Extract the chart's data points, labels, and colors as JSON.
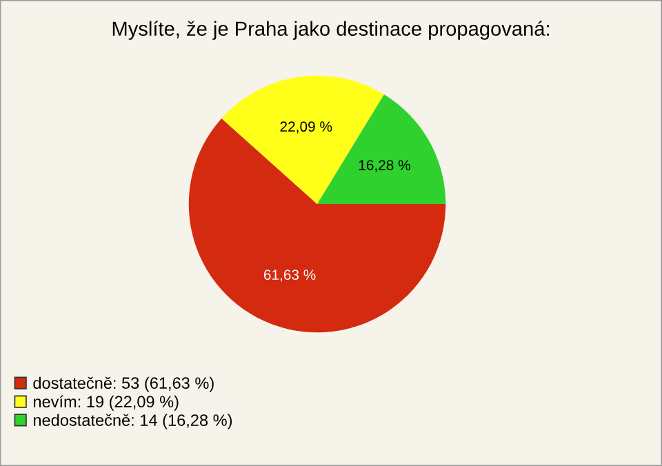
{
  "chart_data": {
    "type": "pie",
    "title": "Myslíte, že je Praha jako destinace propagovaná:",
    "categories": [
      "dostatečně: 53 (61,63 %)",
      "nevím: 19 (22,09 %)",
      "nedostatečně: 14 (16,28 %)"
    ],
    "values": [
      61.63,
      22.09,
      16.28
    ],
    "colors": [
      "#d42a10",
      "#ffff1a",
      "#2ed12e"
    ],
    "value_labels": [
      "61,63 %",
      "22,09 %",
      "16,28 %"
    ],
    "legend": "bottom left"
  }
}
